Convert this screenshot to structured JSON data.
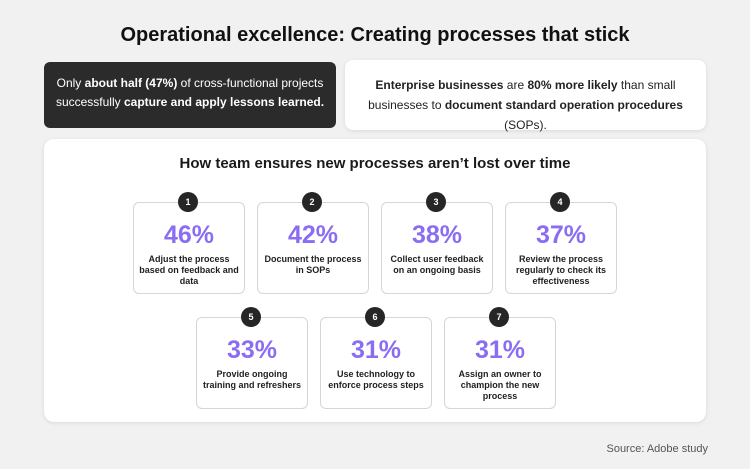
{
  "title": "Operational excellence: Creating processes that stick",
  "card_dark": {
    "t1": "Only ",
    "b1": "about half (47%)",
    "t2": " of cross-functional projects successfully ",
    "b2": "capture and apply lessons learned."
  },
  "card_light": {
    "b1": "Enterprise businesses",
    "t1": " are ",
    "b2": "80% more likely",
    "t2": " than small businesses to ",
    "b3": "document standard operation procedures",
    "t3": " (SOPs)."
  },
  "panel_title": "How team ensures new processes aren’t lost over time",
  "steps": [
    {
      "num": "1",
      "pct": "46%",
      "label": "Adjust the process based on feedback and data"
    },
    {
      "num": "2",
      "pct": "42%",
      "label": "Document the process in SOPs"
    },
    {
      "num": "3",
      "pct": "38%",
      "label": "Collect user feedback on an ongoing basis"
    },
    {
      "num": "4",
      "pct": "37%",
      "label": "Review the process regularly to check its effectiveness"
    },
    {
      "num": "5",
      "pct": "33%",
      "label": "Provide ongoing training and refreshers"
    },
    {
      "num": "6",
      "pct": "31%",
      "label": "Use technology to enforce process steps"
    },
    {
      "num": "7",
      "pct": "31%",
      "label": "Assign an owner to champion the new process"
    }
  ],
  "source": "Source: Adobe study",
  "colors": {
    "accent": "#8a6df2",
    "dark_card": "#2b2b2b",
    "badge": "#262626",
    "background": "#f1f1f1"
  }
}
